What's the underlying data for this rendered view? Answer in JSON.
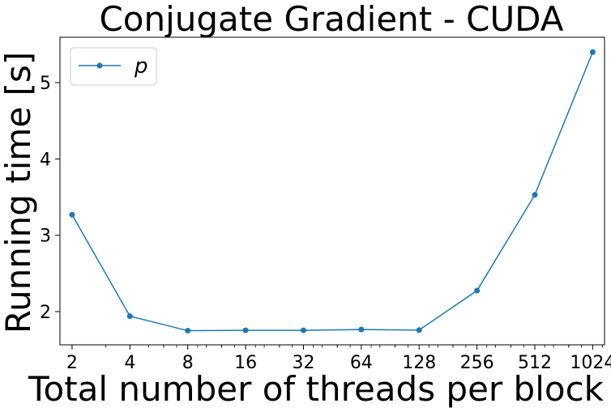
{
  "chart_data": {
    "type": "line",
    "title": "Conjugate Gradient - CUDA",
    "xlabel": "Total number of threads per block",
    "ylabel": "Running time [s]",
    "x_scale": "log2",
    "x": [
      2,
      4,
      8,
      16,
      32,
      64,
      128,
      256,
      512,
      1024
    ],
    "xtick_labels": [
      "2",
      "4",
      "8",
      "16",
      "32",
      "64",
      "128",
      "256",
      "512",
      "1024"
    ],
    "yticks": [
      2,
      3,
      4,
      5
    ],
    "ytick_labels": [
      "2",
      "3",
      "4",
      "5"
    ],
    "xlim": [
      1.73,
      1180
    ],
    "ylim": [
      1.565,
      5.595
    ],
    "grid": false,
    "legend_position": "upper left",
    "series": [
      {
        "name": "p",
        "color": "#1f77b4",
        "marker": "circle",
        "values": [
          3.27,
          1.94,
          1.75,
          1.755,
          1.755,
          1.765,
          1.758,
          2.275,
          3.53,
          5.4
        ]
      }
    ]
  }
}
